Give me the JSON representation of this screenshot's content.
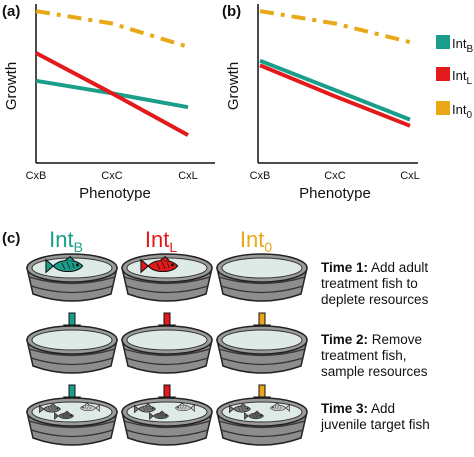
{
  "panels": {
    "a": "(a)",
    "b": "(b)",
    "c": "(c)"
  },
  "chart_data": [
    {
      "type": "line",
      "panel": "(a)",
      "categories": [
        "CxB",
        "CxC",
        "CxL"
      ],
      "xlabel": "Phenotype",
      "ylabel": "Growth",
      "grid": false,
      "ylim": [
        0,
        10
      ],
      "series": [
        {
          "name": "Int_B",
          "color": "#1a9e8a",
          "dash": false,
          "values": [
            5.3,
            4.5,
            3.6
          ]
        },
        {
          "name": "Int_L",
          "color": "#e31a1c",
          "dash": false,
          "values": [
            7.1,
            4.5,
            1.8
          ]
        },
        {
          "name": "Int_0",
          "color": "#e8a817",
          "dash": true,
          "values": [
            9.8,
            9.0,
            7.5
          ]
        }
      ]
    },
    {
      "type": "line",
      "panel": "(b)",
      "categories": [
        "CxB",
        "CxC",
        "CxL"
      ],
      "xlabel": "Phenotype",
      "ylabel": "Growth",
      "grid": false,
      "ylim": [
        0,
        10
      ],
      "series": [
        {
          "name": "Int_B",
          "color": "#1a9e8a",
          "dash": false,
          "values": [
            6.6,
            4.7,
            2.8
          ]
        },
        {
          "name": "Int_L",
          "color": "#e31a1c",
          "dash": false,
          "values": [
            6.3,
            4.3,
            2.4
          ]
        },
        {
          "name": "Int_0",
          "color": "#e8a817",
          "dash": true,
          "values": [
            9.8,
            9.0,
            7.8
          ]
        }
      ]
    }
  ],
  "legend": {
    "placement": "right",
    "items": [
      {
        "main": "Int",
        "sub": "B",
        "color": "#1a9e8a"
      },
      {
        "main": "Int",
        "sub": "L",
        "color": "#e31a1c"
      },
      {
        "main": "Int",
        "sub": "0",
        "color": "#e8a817"
      }
    ]
  },
  "experiment": {
    "columns": [
      {
        "main": "Int",
        "sub": "B",
        "color": "#1a9e8a",
        "fish_color": "#1a9e8a"
      },
      {
        "main": "Int",
        "sub": "L",
        "color": "#e31a1c",
        "fish_color": "#e31a1c"
      },
      {
        "main": "Int",
        "sub": "0",
        "color": "#e8a817",
        "fish_color": null
      }
    ],
    "times": [
      {
        "bold": "Time 1:",
        "lines": [
          " Add adult",
          "treatment fish to",
          "deplete resources"
        ]
      },
      {
        "bold": "Time 2:",
        "lines": [
          " Remove",
          "treatment fish,",
          "sample resources"
        ]
      },
      {
        "bold": "Time 3:",
        "lines": [
          " Add",
          "juvenile target fish"
        ]
      }
    ]
  }
}
